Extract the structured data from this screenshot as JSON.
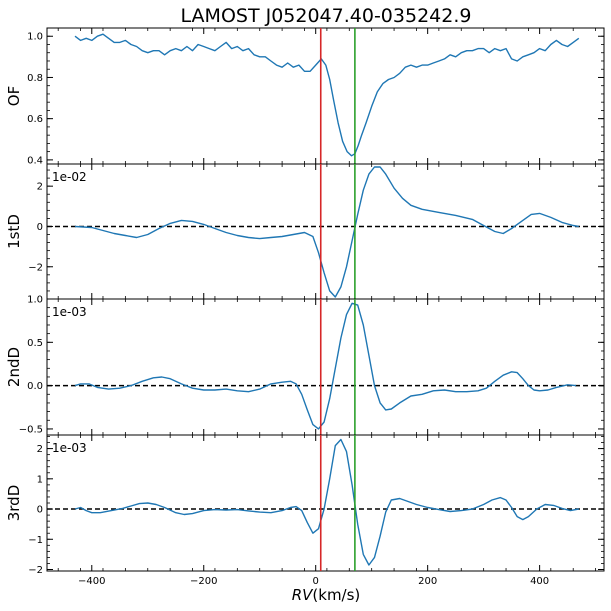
{
  "chart_data": {
    "type": "line",
    "title": "LAMOST J052047.40-035242.9",
    "xlabel_italic": "RV",
    "xlabel_unit": "(km/s)",
    "xlim": [
      -480,
      515
    ],
    "x_ticks": [
      -400,
      -200,
      0,
      200,
      400
    ],
    "markers": [
      {
        "x": 9,
        "color": "#d62728"
      },
      {
        "x": 70,
        "color": "#2ca02c"
      }
    ],
    "series_color": "#1f77b4",
    "panels": [
      {
        "ylabel": "OF",
        "ylim": [
          0.38,
          1.04
        ],
        "yticks": [
          0.4,
          0.6,
          0.8,
          1.0
        ],
        "ytick_labels": [
          "0.4",
          "0.6",
          "0.8",
          "1.0"
        ],
        "zero_line": false,
        "scale_label": "",
        "points": [
          [
            -430,
            1.0
          ],
          [
            -420,
            0.98
          ],
          [
            -410,
            0.99
          ],
          [
            -400,
            0.98
          ],
          [
            -390,
            1.0
          ],
          [
            -380,
            1.01
          ],
          [
            -370,
            0.99
          ],
          [
            -360,
            0.97
          ],
          [
            -350,
            0.97
          ],
          [
            -340,
            0.98
          ],
          [
            -330,
            0.96
          ],
          [
            -320,
            0.95
          ],
          [
            -310,
            0.93
          ],
          [
            -300,
            0.92
          ],
          [
            -290,
            0.93
          ],
          [
            -280,
            0.93
          ],
          [
            -270,
            0.91
          ],
          [
            -260,
            0.93
          ],
          [
            -250,
            0.94
          ],
          [
            -240,
            0.93
          ],
          [
            -230,
            0.95
          ],
          [
            -220,
            0.93
          ],
          [
            -210,
            0.96
          ],
          [
            -200,
            0.95
          ],
          [
            -190,
            0.94
          ],
          [
            -180,
            0.93
          ],
          [
            -170,
            0.95
          ],
          [
            -160,
            0.97
          ],
          [
            -150,
            0.94
          ],
          [
            -140,
            0.95
          ],
          [
            -130,
            0.93
          ],
          [
            -120,
            0.94
          ],
          [
            -110,
            0.91
          ],
          [
            -100,
            0.9
          ],
          [
            -90,
            0.9
          ],
          [
            -80,
            0.88
          ],
          [
            -70,
            0.86
          ],
          [
            -60,
            0.85
          ],
          [
            -50,
            0.87
          ],
          [
            -40,
            0.85
          ],
          [
            -30,
            0.86
          ],
          [
            -20,
            0.83
          ],
          [
            -10,
            0.83
          ],
          [
            0,
            0.86
          ],
          [
            10,
            0.89
          ],
          [
            18,
            0.86
          ],
          [
            25,
            0.79
          ],
          [
            32,
            0.69
          ],
          [
            40,
            0.58
          ],
          [
            48,
            0.49
          ],
          [
            56,
            0.44
          ],
          [
            64,
            0.42
          ],
          [
            70,
            0.43
          ],
          [
            76,
            0.47
          ],
          [
            82,
            0.52
          ],
          [
            90,
            0.58
          ],
          [
            100,
            0.66
          ],
          [
            110,
            0.73
          ],
          [
            120,
            0.77
          ],
          [
            130,
            0.79
          ],
          [
            140,
            0.8
          ],
          [
            150,
            0.82
          ],
          [
            160,
            0.85
          ],
          [
            170,
            0.86
          ],
          [
            180,
            0.85
          ],
          [
            190,
            0.86
          ],
          [
            200,
            0.86
          ],
          [
            210,
            0.87
          ],
          [
            220,
            0.88
          ],
          [
            230,
            0.89
          ],
          [
            240,
            0.91
          ],
          [
            250,
            0.9
          ],
          [
            260,
            0.92
          ],
          [
            270,
            0.93
          ],
          [
            280,
            0.93
          ],
          [
            290,
            0.94
          ],
          [
            300,
            0.94
          ],
          [
            310,
            0.92
          ],
          [
            320,
            0.94
          ],
          [
            330,
            0.93
          ],
          [
            340,
            0.94
          ],
          [
            350,
            0.89
          ],
          [
            360,
            0.88
          ],
          [
            370,
            0.9
          ],
          [
            380,
            0.91
          ],
          [
            390,
            0.92
          ],
          [
            400,
            0.94
          ],
          [
            410,
            0.93
          ],
          [
            420,
            0.96
          ],
          [
            430,
            0.98
          ],
          [
            440,
            0.96
          ],
          [
            450,
            0.95
          ],
          [
            460,
            0.97
          ],
          [
            470,
            0.99
          ]
        ]
      },
      {
        "ylabel": "1stD",
        "ylim": [
          -3.6,
          3.1
        ],
        "yticks": [
          -2,
          0,
          2
        ],
        "ytick_labels": [
          "−2",
          "0",
          "2"
        ],
        "zero_line": true,
        "scale_label": "1e-02",
        "points": [
          [
            -430,
            0.0
          ],
          [
            -400,
            -0.05
          ],
          [
            -380,
            -0.2
          ],
          [
            -360,
            -0.35
          ],
          [
            -340,
            -0.45
          ],
          [
            -320,
            -0.55
          ],
          [
            -300,
            -0.4
          ],
          [
            -280,
            -0.1
          ],
          [
            -260,
            0.15
          ],
          [
            -240,
            0.3
          ],
          [
            -220,
            0.25
          ],
          [
            -200,
            0.1
          ],
          [
            -180,
            -0.1
          ],
          [
            -160,
            -0.3
          ],
          [
            -140,
            -0.45
          ],
          [
            -120,
            -0.55
          ],
          [
            -100,
            -0.6
          ],
          [
            -80,
            -0.55
          ],
          [
            -60,
            -0.5
          ],
          [
            -40,
            -0.4
          ],
          [
            -20,
            -0.3
          ],
          [
            -5,
            -0.5
          ],
          [
            5,
            -1.3
          ],
          [
            15,
            -2.3
          ],
          [
            25,
            -3.2
          ],
          [
            35,
            -3.5
          ],
          [
            45,
            -3.0
          ],
          [
            55,
            -2.0
          ],
          [
            65,
            -0.7
          ],
          [
            75,
            0.6
          ],
          [
            85,
            1.8
          ],
          [
            95,
            2.6
          ],
          [
            105,
            2.95
          ],
          [
            115,
            2.95
          ],
          [
            125,
            2.6
          ],
          [
            140,
            1.9
          ],
          [
            155,
            1.4
          ],
          [
            170,
            1.05
          ],
          [
            190,
            0.85
          ],
          [
            220,
            0.7
          ],
          [
            250,
            0.55
          ],
          [
            280,
            0.35
          ],
          [
            300,
            0.05
          ],
          [
            320,
            -0.25
          ],
          [
            335,
            -0.35
          ],
          [
            350,
            -0.1
          ],
          [
            370,
            0.3
          ],
          [
            385,
            0.6
          ],
          [
            400,
            0.65
          ],
          [
            420,
            0.45
          ],
          [
            440,
            0.2
          ],
          [
            460,
            0.05
          ],
          [
            470,
            0.0
          ]
        ]
      },
      {
        "ylabel": "2ndD",
        "ylim": [
          -0.57,
          1.0
        ],
        "yticks": [
          -0.5,
          0.0,
          0.5,
          1.0
        ],
        "ytick_labels": [
          "−0.5",
          "0.0",
          "0.5",
          "1.0"
        ],
        "zero_line": true,
        "scale_label": "1e-03",
        "points": [
          [
            -430,
            0.0
          ],
          [
            -420,
            0.02
          ],
          [
            -405,
            0.02
          ],
          [
            -390,
            -0.02
          ],
          [
            -370,
            -0.04
          ],
          [
            -350,
            -0.03
          ],
          [
            -330,
            0.0
          ],
          [
            -310,
            0.05
          ],
          [
            -290,
            0.09
          ],
          [
            -275,
            0.1
          ],
          [
            -260,
            0.08
          ],
          [
            -240,
            0.02
          ],
          [
            -220,
            -0.03
          ],
          [
            -200,
            -0.05
          ],
          [
            -180,
            -0.05
          ],
          [
            -160,
            -0.04
          ],
          [
            -140,
            -0.06
          ],
          [
            -120,
            -0.07
          ],
          [
            -100,
            -0.04
          ],
          [
            -80,
            0.02
          ],
          [
            -60,
            0.04
          ],
          [
            -45,
            0.05
          ],
          [
            -35,
            0.02
          ],
          [
            -25,
            -0.1
          ],
          [
            -15,
            -0.28
          ],
          [
            -5,
            -0.45
          ],
          [
            5,
            -0.5
          ],
          [
            15,
            -0.42
          ],
          [
            25,
            -0.15
          ],
          [
            35,
            0.2
          ],
          [
            45,
            0.55
          ],
          [
            55,
            0.82
          ],
          [
            65,
            0.95
          ],
          [
            75,
            0.93
          ],
          [
            85,
            0.7
          ],
          [
            95,
            0.35
          ],
          [
            105,
            0.0
          ],
          [
            115,
            -0.2
          ],
          [
            125,
            -0.28
          ],
          [
            135,
            -0.27
          ],
          [
            150,
            -0.2
          ],
          [
            170,
            -0.12
          ],
          [
            190,
            -0.1
          ],
          [
            210,
            -0.06
          ],
          [
            230,
            -0.05
          ],
          [
            250,
            -0.07
          ],
          [
            270,
            -0.07
          ],
          [
            290,
            -0.06
          ],
          [
            305,
            -0.03
          ],
          [
            320,
            0.05
          ],
          [
            335,
            0.12
          ],
          [
            350,
            0.16
          ],
          [
            360,
            0.15
          ],
          [
            370,
            0.08
          ],
          [
            380,
            0.0
          ],
          [
            390,
            -0.05
          ],
          [
            400,
            -0.06
          ],
          [
            415,
            -0.05
          ],
          [
            430,
            -0.02
          ],
          [
            450,
            0.01
          ],
          [
            465,
            0.0
          ]
        ]
      },
      {
        "ylabel": "3rdD",
        "ylim": [
          -2.05,
          2.45
        ],
        "yticks": [
          -2,
          -1,
          0,
          1,
          2
        ],
        "ytick_labels": [
          "−2",
          "−1",
          "0",
          "1",
          "2"
        ],
        "zero_line": true,
        "scale_label": "1e-03",
        "points": [
          [
            -430,
            0.0
          ],
          [
            -420,
            0.05
          ],
          [
            -410,
            -0.05
          ],
          [
            -400,
            -0.12
          ],
          [
            -385,
            -0.12
          ],
          [
            -365,
            -0.05
          ],
          [
            -345,
            0.02
          ],
          [
            -330,
            0.1
          ],
          [
            -315,
            0.18
          ],
          [
            -300,
            0.2
          ],
          [
            -285,
            0.15
          ],
          [
            -270,
            0.05
          ],
          [
            -250,
            -0.12
          ],
          [
            -235,
            -0.18
          ],
          [
            -220,
            -0.15
          ],
          [
            -200,
            -0.05
          ],
          [
            -180,
            -0.02
          ],
          [
            -160,
            -0.03
          ],
          [
            -140,
            -0.02
          ],
          [
            -120,
            -0.06
          ],
          [
            -100,
            -0.1
          ],
          [
            -80,
            -0.12
          ],
          [
            -60,
            -0.05
          ],
          [
            -45,
            0.05
          ],
          [
            -35,
            0.08
          ],
          [
            -25,
            -0.05
          ],
          [
            -15,
            -0.45
          ],
          [
            -5,
            -0.8
          ],
          [
            5,
            -0.65
          ],
          [
            15,
            0.0
          ],
          [
            25,
            1.0
          ],
          [
            35,
            2.1
          ],
          [
            45,
            2.3
          ],
          [
            55,
            1.9
          ],
          [
            65,
            0.8
          ],
          [
            75,
            -0.5
          ],
          [
            85,
            -1.5
          ],
          [
            95,
            -1.85
          ],
          [
            105,
            -1.6
          ],
          [
            115,
            -0.9
          ],
          [
            125,
            -0.1
          ],
          [
            135,
            0.3
          ],
          [
            150,
            0.35
          ],
          [
            165,
            0.25
          ],
          [
            180,
            0.15
          ],
          [
            200,
            0.05
          ],
          [
            220,
            -0.02
          ],
          [
            240,
            -0.08
          ],
          [
            260,
            -0.05
          ],
          [
            280,
            0.0
          ],
          [
            300,
            0.15
          ],
          [
            315,
            0.3
          ],
          [
            330,
            0.38
          ],
          [
            340,
            0.3
          ],
          [
            350,
            0.05
          ],
          [
            360,
            -0.25
          ],
          [
            370,
            -0.35
          ],
          [
            380,
            -0.25
          ],
          [
            395,
            0.0
          ],
          [
            410,
            0.15
          ],
          [
            425,
            0.12
          ],
          [
            440,
            0.02
          ],
          [
            455,
            -0.05
          ],
          [
            470,
            0.0
          ]
        ]
      }
    ]
  }
}
